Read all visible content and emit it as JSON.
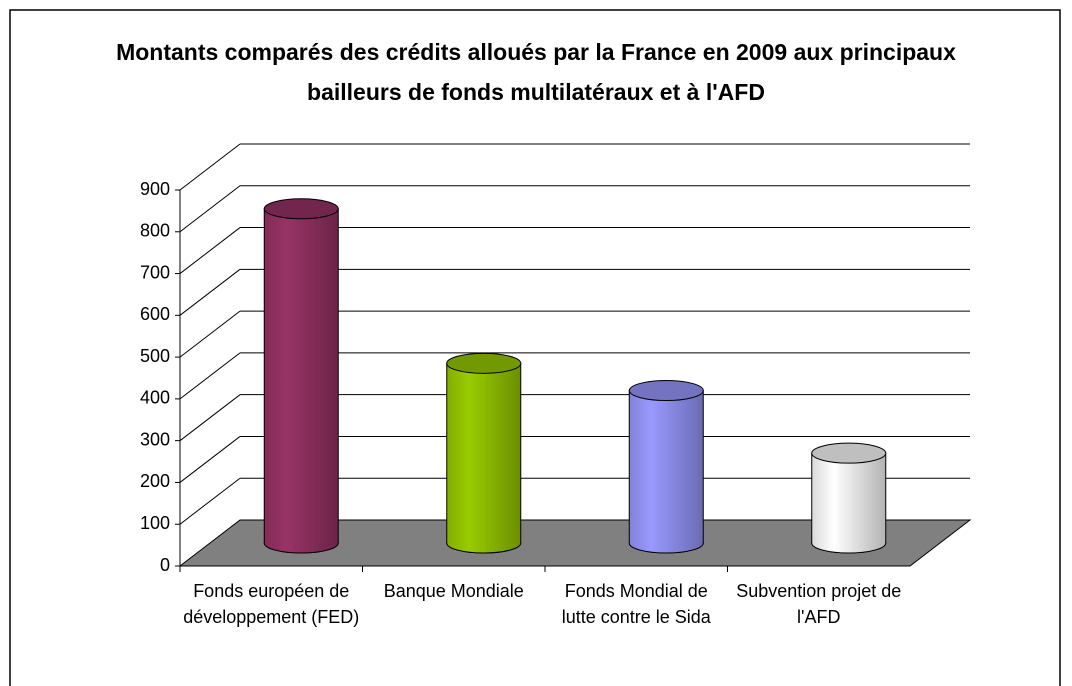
{
  "chart_data": {
    "type": "bar3d-cylinder",
    "title": "Montants comparés des  crédits alloués par la France en 2009 aux principaux bailleurs de fonds multilatéraux et à l'AFD",
    "categories": [
      "Fonds européen de développement (FED)",
      "Banque Mondiale",
      "Fonds Mondial de lutte contre le Sida",
      "Subvention projet de l'AFD"
    ],
    "values": [
      800,
      430,
      365,
      215
    ],
    "colors": [
      "#993366",
      "#99cc00",
      "#9999ff",
      "#ffffff"
    ],
    "ylim": [
      0,
      900
    ],
    "yticks": [
      0,
      100,
      200,
      300,
      400,
      500,
      600,
      700,
      800,
      900
    ],
    "grid": true
  }
}
